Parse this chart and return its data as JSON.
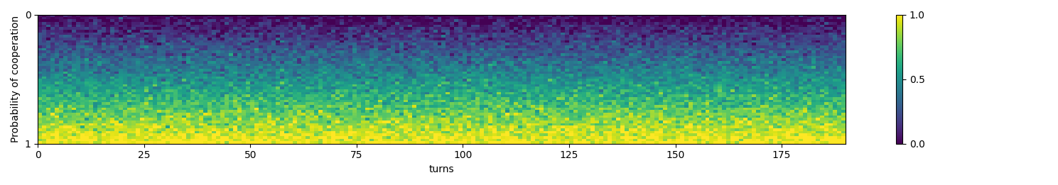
{
  "n_turns": 190,
  "n_probs": 50,
  "turns_ticks": [
    0,
    25,
    50,
    75,
    100,
    125,
    150,
    175
  ],
  "prob_ticks": [
    0,
    1
  ],
  "xlabel": "turns",
  "ylabel": "Probability of cooperation",
  "cmap": "viridis",
  "vmin": 0.0,
  "vmax": 1.0,
  "colorbar_ticks": [
    0.0,
    0.5,
    1.0
  ],
  "figsize": [
    14.89,
    2.61
  ],
  "dpi": 100,
  "noise_std": 0.08,
  "seed_base": 42
}
